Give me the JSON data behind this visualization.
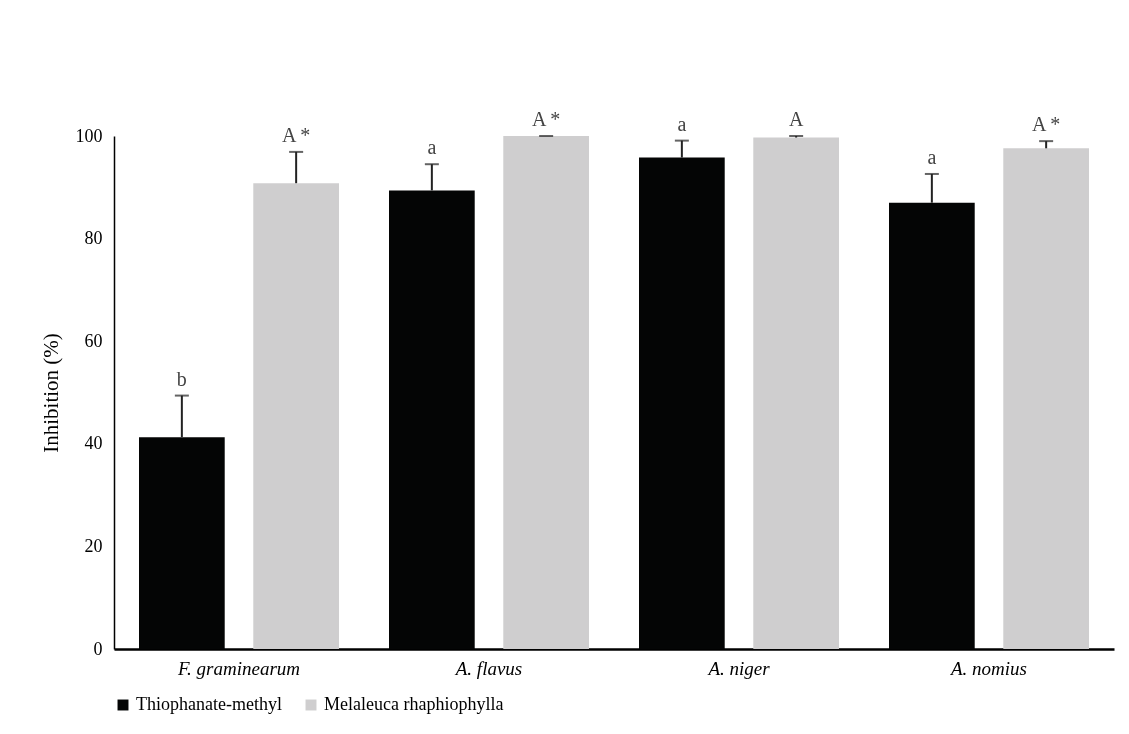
{
  "chart_data": {
    "type": "bar",
    "ylabel": "Inhibition (%)",
    "categories": [
      "F. graminearum",
      "A. flavus",
      "A. niger",
      "A. nomius"
    ],
    "series": [
      {
        "name": "Thiophanate-methyl",
        "color": "#040505",
        "values": [
          41.3,
          89.4,
          95.8,
          87.0
        ],
        "errors": [
          8.1,
          5.1,
          3.3,
          5.6
        ],
        "value_labels": [
          "b",
          "a",
          "a",
          "a"
        ]
      },
      {
        "name": "Melaleuca rhaphiophylla",
        "color": "#cfcecf",
        "values": [
          90.8,
          100,
          99.7,
          97.6
        ],
        "errors": [
          6.1,
          0,
          0.3,
          1.4
        ],
        "value_labels": [
          "A *",
          "A *",
          "A",
          "A *"
        ]
      }
    ],
    "ylim": [
      0,
      100
    ],
    "yticks": [
      0,
      20,
      40,
      60,
      80,
      100
    ],
    "grid": false,
    "legend": "bottom"
  }
}
